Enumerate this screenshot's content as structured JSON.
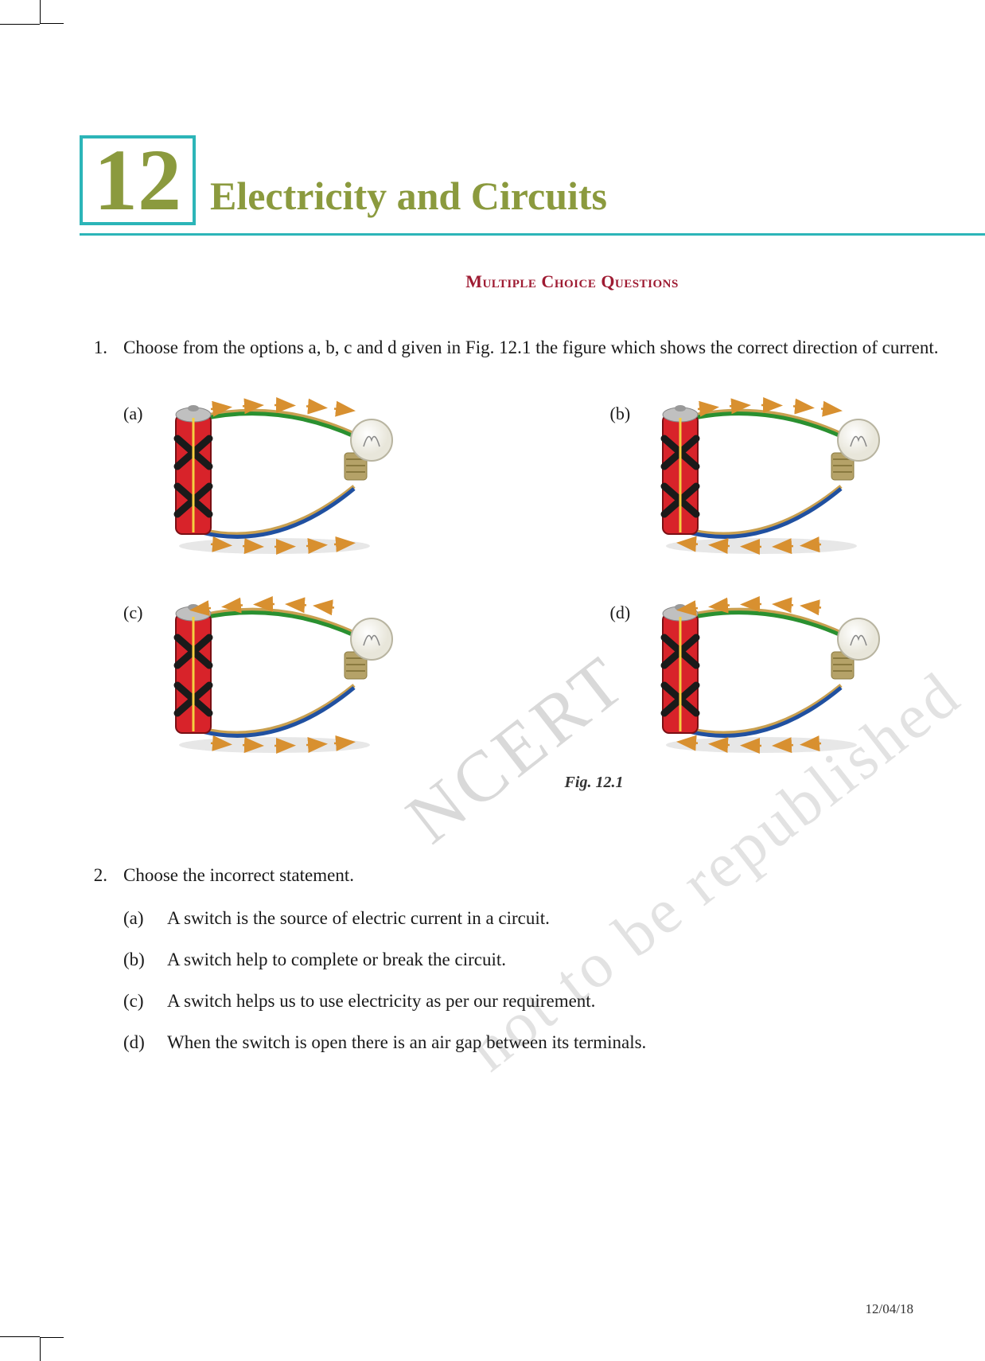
{
  "chapter": {
    "number": "12",
    "title": "Electricity and Circuits",
    "number_color": "#8b9a3e",
    "title_color": "#8b9a3e",
    "box_border_color": "#2cb5b8",
    "underline_color": "#2cb5b8"
  },
  "section_heading": {
    "text": "Multiple Choice Questions",
    "color": "#9e1b32"
  },
  "questions": [
    {
      "num": "1.",
      "text": "Choose from the options a, b, c and d given in Fig. 12.1 the figure which shows the correct direction of current.",
      "figure": {
        "caption": "Fig. 12.1",
        "cells": [
          {
            "label": "(a)",
            "top_arrows": "right",
            "bottom_arrows": "right"
          },
          {
            "label": "(b)",
            "top_arrows": "right",
            "bottom_arrows": "left"
          },
          {
            "label": "(c)",
            "top_arrows": "left",
            "bottom_arrows": "right"
          },
          {
            "label": "(d)",
            "top_arrows": "left",
            "bottom_arrows": "left"
          }
        ],
        "colors": {
          "battery_body": "#d8232a",
          "battery_cap": "#c0c0c0",
          "battery_tape": "#1a1a1a",
          "bulb_base": "#b5a268",
          "bulb_glass": "#f5f5f0",
          "wire_top1": "#c9a050",
          "wire_top2": "#2a9030",
          "wire_bottom1": "#c9a050",
          "wire_bottom2": "#2050a0",
          "arrow": "#d89030"
        }
      }
    },
    {
      "num": "2.",
      "text": "Choose the incorrect statement.",
      "options": [
        {
          "label": "(a)",
          "text": "A switch is the source of electric current in a circuit."
        },
        {
          "label": "(b)",
          "text": "A switch help to  complete or break the circuit."
        },
        {
          "label": "(c)",
          "text": "A switch helps us to use electricity as per our requirement."
        },
        {
          "label": "(d)",
          "text": "When the switch is open there is an air gap between its terminals."
        }
      ]
    }
  ],
  "watermarks": {
    "w1": "NCERT",
    "w2": "not to be republished"
  },
  "footer_date": "12/04/18"
}
